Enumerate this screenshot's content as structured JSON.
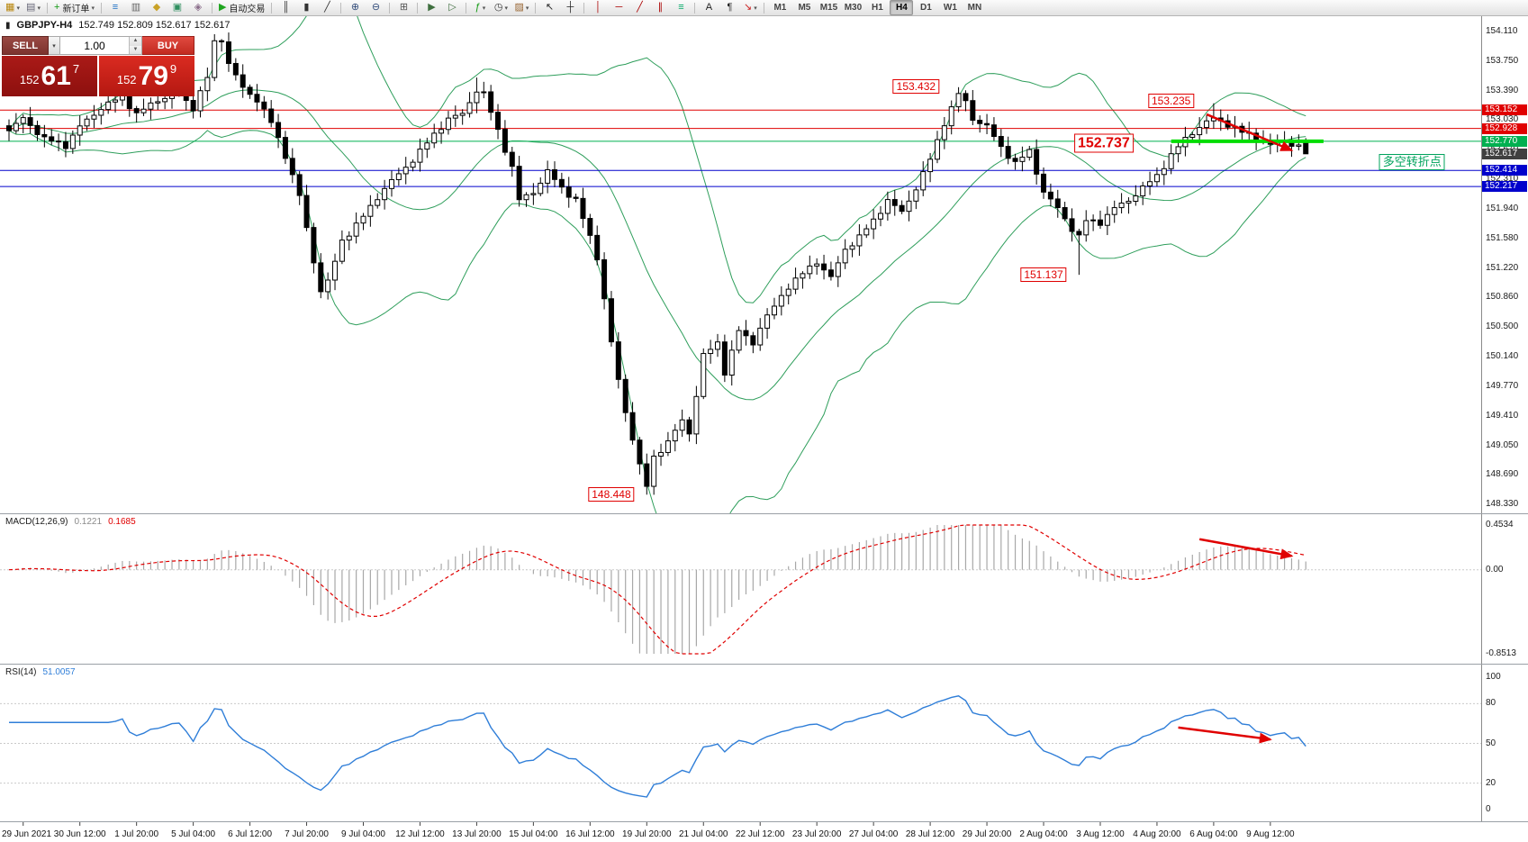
{
  "toolbar": {
    "buttons": [
      {
        "name": "new-chart-icon",
        "glyph": "▦",
        "color": "#b8860b",
        "dd": true
      },
      {
        "name": "profiles-icon",
        "glyph": "▤",
        "color": "#667",
        "dd": true
      },
      {
        "sep": true
      },
      {
        "name": "new-order-button",
        "glyph": "+",
        "color": "#119911",
        "label": "新订单",
        "dd": true
      },
      {
        "sep": true
      },
      {
        "name": "market-watch-icon",
        "glyph": "≡",
        "color": "#1b6fc4"
      },
      {
        "name": "data-window-icon",
        "glyph": "▥",
        "color": "#666"
      },
      {
        "name": "navigator-icon",
        "glyph": "◆",
        "color": "#c9a227"
      },
      {
        "name": "terminal-icon",
        "glyph": "▣",
        "color": "#2f8f5f"
      },
      {
        "name": "strategy-tester-icon",
        "glyph": "◈",
        "color": "#8a6d8a"
      },
      {
        "sep": true
      },
      {
        "name": "autotrading-button",
        "glyph": "▶",
        "color": "#1fa51f",
        "label": "自动交易"
      },
      {
        "sep": true
      },
      {
        "name": "bar-chart-icon",
        "glyph": "║",
        "color": "#333"
      },
      {
        "name": "candlestick-chart-icon",
        "glyph": "▮",
        "color": "#333"
      },
      {
        "name": "line-chart-icon",
        "glyph": "╱",
        "color": "#333"
      },
      {
        "sep": true
      },
      {
        "name": "zoom-in-icon",
        "glyph": "⊕",
        "color": "#334d7a"
      },
      {
        "name": "zoom-out-icon",
        "glyph": "⊖",
        "color": "#334d7a"
      },
      {
        "sep": true
      },
      {
        "name": "tile-windows-icon",
        "glyph": "⊞",
        "color": "#555"
      },
      {
        "sep": true
      },
      {
        "name": "auto-scroll-icon",
        "glyph": "▶",
        "color": "#3f6f3f"
      },
      {
        "name": "chart-shift-icon",
        "glyph": "▷",
        "color": "#3f6f3f"
      },
      {
        "sep": true
      },
      {
        "name": "indicators-icon",
        "glyph": "ƒ",
        "color": "#119911",
        "dd": true
      },
      {
        "name": "periods-dropdown",
        "glyph": "◷",
        "color": "#333",
        "dd": true
      },
      {
        "name": "templates-icon",
        "glyph": "▨",
        "color": "#996633",
        "dd": true
      },
      {
        "sep": true
      },
      {
        "name": "cursor-icon",
        "glyph": "↖",
        "color": "#222"
      },
      {
        "name": "crosshair-icon",
        "glyph": "┼",
        "color": "#222"
      },
      {
        "sep": true
      },
      {
        "name": "vertical-line-icon",
        "glyph": "│",
        "color": "#a00"
      },
      {
        "name": "horizontal-line-icon",
        "glyph": "─",
        "color": "#a00"
      },
      {
        "name": "trendline-icon",
        "glyph": "╱",
        "color": "#a00"
      },
      {
        "name": "channel-icon",
        "glyph": "∥",
        "color": "#a00"
      },
      {
        "name": "fibonacci-icon",
        "glyph": "≡",
        "color": "#0a6"
      },
      {
        "sep": true
      },
      {
        "name": "text-icon",
        "glyph": "A",
        "color": "#222"
      },
      {
        "name": "label-icon",
        "glyph": "¶",
        "color": "#222"
      },
      {
        "name": "arrows-icon",
        "glyph": "↘",
        "color": "#c22",
        "dd": true
      },
      {
        "sep": true
      }
    ],
    "timeframes": [
      "M1",
      "M5",
      "M15",
      "M30",
      "H1",
      "H4",
      "D1",
      "W1",
      "MN"
    ],
    "active_timeframe": "H4"
  },
  "chart_header": {
    "symbol": "GBPJPY-H4",
    "ohlc": "152.749 152.809 152.617 152.617"
  },
  "quote_panel": {
    "sell_label": "SELL",
    "buy_label": "BUY",
    "volume": "1.00",
    "sell_prefix": "152",
    "sell_big": "61",
    "sell_sup": "7",
    "buy_prefix": "152",
    "buy_big": "79",
    "buy_sup": "9"
  },
  "macd": {
    "title": "MACD(12,26,9)",
    "value_main": "0.1221",
    "value_signal": "0.1685",
    "axis_labels": [
      "0.4534",
      "0.00",
      "-0.8513"
    ]
  },
  "rsi": {
    "title": "RSI(14)",
    "value": "51.0057",
    "axis_labels": [
      "100",
      "80",
      "50",
      "20",
      "0"
    ]
  },
  "chart_data": {
    "type": "candlestick",
    "symbol": "GBPJPY",
    "timeframe": "H4",
    "price_axis": {
      "view_max": 154.3,
      "view_min": 148.22,
      "labels": [
        "154.110",
        "153.750",
        "153.390",
        "153.030",
        "152.670",
        "152.310",
        "151.940",
        "151.580",
        "151.220",
        "150.860",
        "150.500",
        "150.140",
        "149.770",
        "149.410",
        "149.050",
        "148.690",
        "148.330"
      ],
      "tags": [
        {
          "text": "153.152",
          "price": 153.152,
          "color": "#e00000"
        },
        {
          "text": "152.928",
          "price": 152.928,
          "color": "#e00000"
        },
        {
          "text": "152.770",
          "price": 152.77,
          "color": "#00b050"
        },
        {
          "text": "152.617",
          "price": 152.617,
          "color": "#404040"
        },
        {
          "text": "152.414",
          "price": 152.414,
          "color": "#0000cc"
        },
        {
          "text": "152.217",
          "price": 152.217,
          "color": "#0000cc"
        }
      ]
    },
    "hlines": [
      {
        "price": 153.152,
        "color": "#e00000",
        "width": 1
      },
      {
        "price": 152.928,
        "color": "#e00000",
        "width": 1
      },
      {
        "price": 152.77,
        "color": "#00b050",
        "width": 1
      },
      {
        "price": 152.414,
        "color": "#0000cc",
        "width": 1
      },
      {
        "price": 152.217,
        "color": "#0000cc",
        "width": 1
      }
    ],
    "trend_segment": {
      "i1": 164,
      "i2": 185.5,
      "price": 152.77,
      "color": "#00dd00",
      "width": 4
    },
    "annotations": [
      {
        "text": "153.432",
        "i": 128,
        "price": 153.44,
        "kind": "red"
      },
      {
        "text": "153.235",
        "i": 164,
        "price": 153.26,
        "kind": "red"
      },
      {
        "text": "152.737",
        "i": 154.5,
        "price": 152.75,
        "kind": "red-big"
      },
      {
        "text": "151.137",
        "i": 146,
        "price": 151.14,
        "kind": "red"
      },
      {
        "text": "148.448",
        "i": 85,
        "price": 148.45,
        "kind": "red"
      },
      {
        "text": "多空转折点",
        "i": 198,
        "price": 152.52,
        "kind": "green"
      }
    ],
    "arrows": [
      {
        "panel": "main",
        "i1": 169,
        "v1": 153.1,
        "i2": 181,
        "v2": 152.66
      },
      {
        "panel": "macd",
        "i1": 168,
        "v1": 0.31,
        "i2": 181,
        "v2": 0.14
      },
      {
        "panel": "rsi",
        "i1": 165,
        "v1": 62,
        "i2": 178,
        "v2": 53
      }
    ],
    "candles": {
      "count": 184,
      "wiggle": 0.04,
      "close_anchors": [
        [
          0,
          152.9
        ],
        [
          2,
          153.05
        ],
        [
          5,
          152.8
        ],
        [
          8,
          152.72
        ],
        [
          10,
          152.95
        ],
        [
          13,
          153.18
        ],
        [
          16,
          153.32
        ],
        [
          18,
          153.1
        ],
        [
          21,
          153.28
        ],
        [
          24,
          153.35
        ],
        [
          26,
          153.18
        ],
        [
          28,
          153.55
        ],
        [
          29,
          153.98
        ],
        [
          30,
          154.02
        ],
        [
          31,
          153.72
        ],
        [
          33,
          153.42
        ],
        [
          35,
          153.28
        ],
        [
          37,
          153.0
        ],
        [
          39,
          152.6
        ],
        [
          41,
          152.1
        ],
        [
          43,
          151.3
        ],
        [
          44,
          150.95
        ],
        [
          45,
          151.05
        ],
        [
          47,
          151.55
        ],
        [
          50,
          151.85
        ],
        [
          53,
          152.2
        ],
        [
          56,
          152.45
        ],
        [
          58,
          152.65
        ],
        [
          60,
          152.85
        ],
        [
          62,
          153.05
        ],
        [
          64,
          153.1
        ],
        [
          66,
          153.4
        ],
        [
          67,
          153.35
        ],
        [
          69,
          152.9
        ],
        [
          71,
          152.45
        ],
        [
          72,
          152.05
        ],
        [
          74,
          152.15
        ],
        [
          76,
          152.4
        ],
        [
          78,
          152.2
        ],
        [
          80,
          152.05
        ],
        [
          82,
          151.6
        ],
        [
          83,
          151.35
        ],
        [
          84,
          150.85
        ],
        [
          85,
          150.3
        ],
        [
          86,
          149.85
        ],
        [
          87,
          149.45
        ],
        [
          88,
          149.15
        ],
        [
          89,
          148.8
        ],
        [
          90,
          148.55
        ],
        [
          91,
          148.9
        ],
        [
          93,
          149.1
        ],
        [
          95,
          149.35
        ],
        [
          96,
          149.2
        ],
        [
          98,
          150.15
        ],
        [
          100,
          150.3
        ],
        [
          101,
          149.95
        ],
        [
          103,
          150.45
        ],
        [
          105,
          150.3
        ],
        [
          106,
          150.5
        ],
        [
          108,
          150.75
        ],
        [
          110,
          151.0
        ],
        [
          112,
          151.15
        ],
        [
          114,
          151.3
        ],
        [
          116,
          151.1
        ],
        [
          118,
          151.45
        ],
        [
          120,
          151.6
        ],
        [
          122,
          151.8
        ],
        [
          124,
          152.05
        ],
        [
          126,
          151.9
        ],
        [
          128,
          152.2
        ],
        [
          130,
          152.55
        ],
        [
          132,
          153.0
        ],
        [
          134,
          153.35
        ],
        [
          135,
          153.25
        ],
        [
          136,
          153.05
        ],
        [
          138,
          152.95
        ],
        [
          140,
          152.7
        ],
        [
          142,
          152.5
        ],
        [
          144,
          152.65
        ],
        [
          146,
          152.15
        ],
        [
          148,
          151.95
        ],
        [
          150,
          151.7
        ],
        [
          151,
          151.6
        ],
        [
          152,
          151.8
        ],
        [
          154,
          151.78
        ],
        [
          156,
          151.95
        ],
        [
          158,
          152.05
        ],
        [
          160,
          152.2
        ],
        [
          162,
          152.35
        ],
        [
          164,
          152.6
        ],
        [
          166,
          152.8
        ],
        [
          168,
          152.95
        ],
        [
          170,
          153.05
        ],
        [
          172,
          152.98
        ],
        [
          174,
          152.88
        ],
        [
          176,
          152.82
        ],
        [
          178,
          152.72
        ],
        [
          180,
          152.78
        ],
        [
          182,
          152.7
        ],
        [
          183,
          152.617
        ]
      ],
      "overrides": {
        "29": {
          "h": 154.08
        },
        "30": {
          "h": 154.02
        },
        "66": {
          "h": 153.55
        },
        "90": {
          "l": 148.448
        },
        "134": {
          "h": 153.432
        },
        "151": {
          "l": 151.137
        },
        "170": {
          "h": 153.235
        },
        "183": {
          "o": 152.749,
          "h": 152.809,
          "l": 152.617,
          "c": 152.617
        }
      }
    },
    "indicators": {
      "bollinger": {
        "period": 20,
        "deviation": 2,
        "color": "#2e9e5b"
      },
      "macd": {
        "fast": 12,
        "slow": 26,
        "signal": 9,
        "axis_max": 0.4534,
        "axis_min": -0.8513
      },
      "rsi": {
        "period": 14,
        "levels": [
          80,
          50,
          20
        ]
      }
    },
    "time_labels": [
      "29 Jun 2021",
      "30 Jun 12:00",
      "1 Jul 20:00",
      "5 Jul 04:00",
      "6 Jul 12:00",
      "7 Jul 20:00",
      "9 Jul 04:00",
      "12 Jul 12:00",
      "13 Jul 20:00",
      "15 Jul 04:00",
      "16 Jul 12:00",
      "19 Jul 20:00",
      "21 Jul 04:00",
      "22 Jul 12:00",
      "23 Jul 20:00",
      "27 Jul 04:00",
      "28 Jul 12:00",
      "29 Jul 20:00",
      "2 Aug 04:00",
      "3 Aug 12:00",
      "4 Aug 20:00",
      "6 Aug 04:00",
      "9 Aug 12:00"
    ]
  }
}
